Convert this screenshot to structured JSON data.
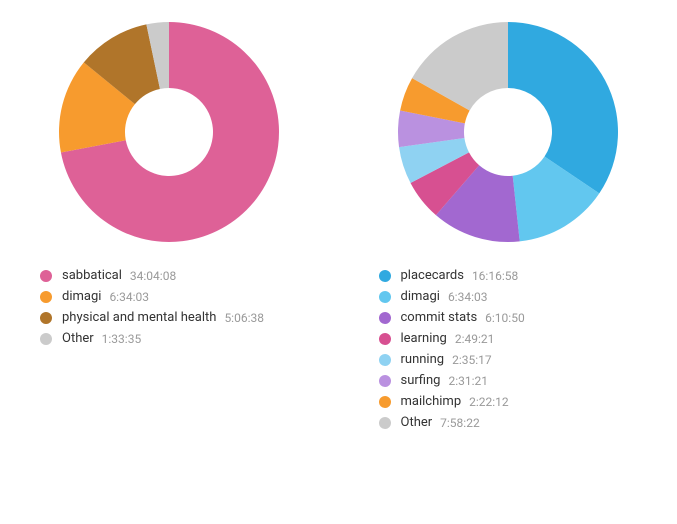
{
  "charts": [
    {
      "type": "donut",
      "outer_radius": 110,
      "inner_radius": 44,
      "background_color": "#ffffff",
      "start_angle_deg": 0,
      "slices": [
        {
          "label": "sabbatical",
          "time": "34:04:08",
          "seconds": 122648,
          "color": "#de6197"
        },
        {
          "label": "dimagi",
          "time": "6:34:03",
          "seconds": 23643,
          "color": "#f79b2e"
        },
        {
          "label": "physical and mental health",
          "time": "5:06:38",
          "seconds": 18398,
          "color": "#b0752a"
        },
        {
          "label": "Other",
          "time": "1:33:35",
          "seconds": 5615,
          "color": "#cbcbcb"
        }
      ]
    },
    {
      "type": "donut",
      "outer_radius": 110,
      "inner_radius": 44,
      "background_color": "#ffffff",
      "start_angle_deg": 0,
      "slices": [
        {
          "label": "placecards",
          "time": "16:16:58",
          "seconds": 58618,
          "color": "#30a9e0"
        },
        {
          "label": "dimagi",
          "time": "6:34:03",
          "seconds": 23643,
          "color": "#62c7ef"
        },
        {
          "label": "commit stats",
          "time": "6:10:50",
          "seconds": 22250,
          "color": "#a268d0"
        },
        {
          "label": "learning",
          "time": "2:49:21",
          "seconds": 10161,
          "color": "#d75091"
        },
        {
          "label": "running",
          "time": "2:35:17",
          "seconds": 9317,
          "color": "#8fd2f2"
        },
        {
          "label": "surfing",
          "time": "2:31:21",
          "seconds": 9081,
          "color": "#ba91e0"
        },
        {
          "label": "mailchimp",
          "time": "2:22:12",
          "seconds": 8532,
          "color": "#f79b2e"
        },
        {
          "label": "Other",
          "time": "7:58:22",
          "seconds": 28702,
          "color": "#cbcbcb"
        }
      ]
    }
  ],
  "legend_label_color": "#333333",
  "legend_value_color": "#999999",
  "legend_fontsize": 13,
  "swatch_size": 12
}
